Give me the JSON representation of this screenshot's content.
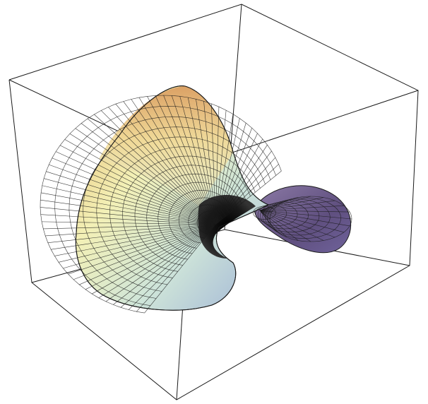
{
  "figure": {
    "type": "3d-surface",
    "box_visible": true,
    "axes_labels_visible": false,
    "mesh_lines": true,
    "colors": {
      "background": "#ffffff",
      "box_line": "#1a1a1a",
      "mesh_line": "#1a1a1a",
      "surface_gradient": [
        "#f3f0b6",
        "#e8c47a",
        "#cfe5d9",
        "#9fb3d6",
        "#6d5a8a"
      ]
    }
  }
}
